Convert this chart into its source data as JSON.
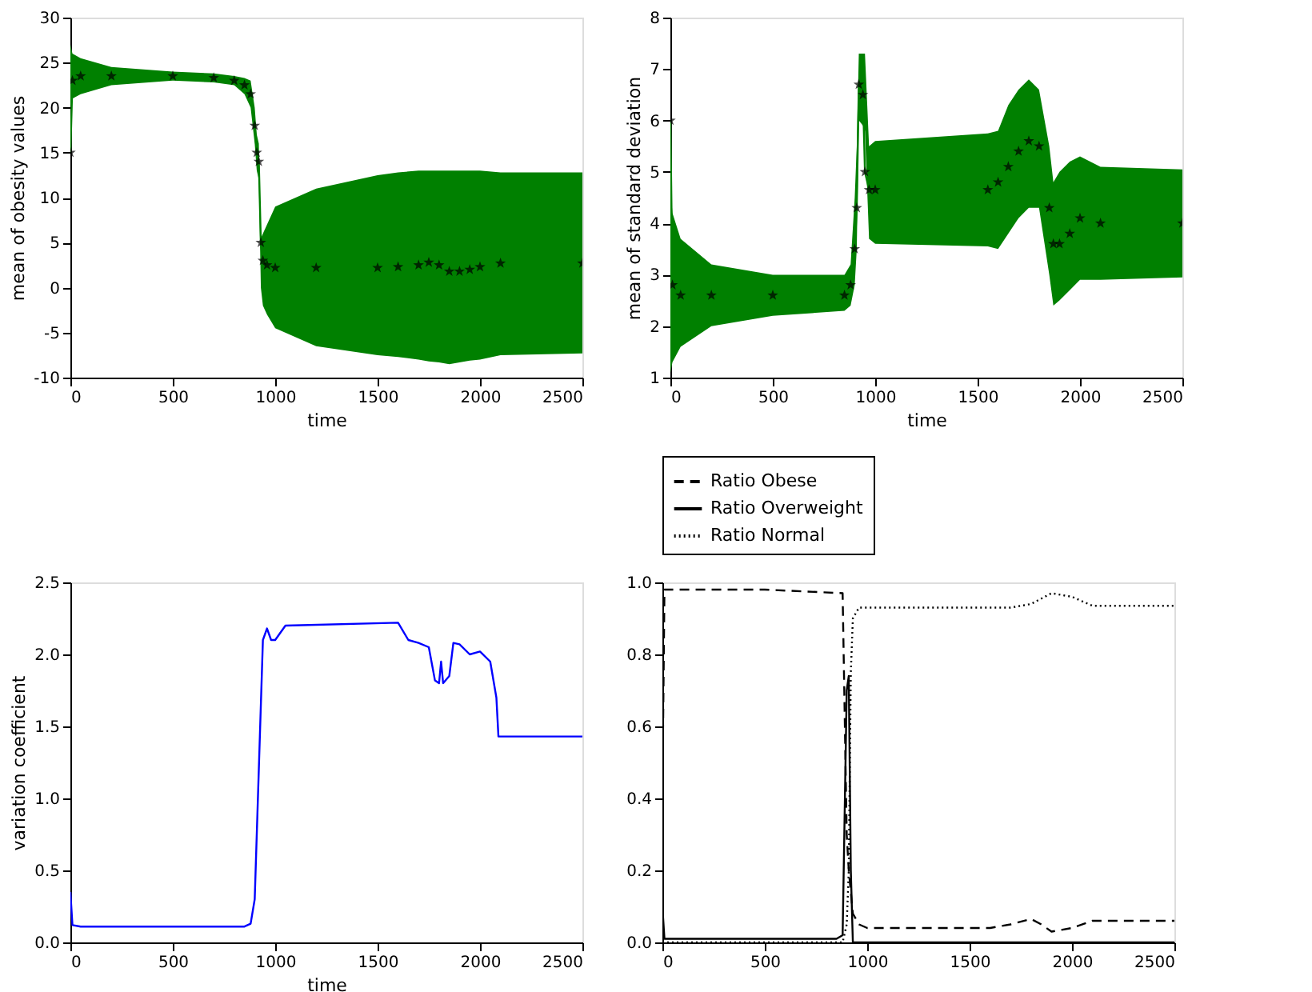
{
  "chart_data": [
    {
      "type": "line",
      "xlabel": "time",
      "ylabel": "mean of obesity values",
      "xlim": [
        0,
        2500
      ],
      "ylim": [
        -10,
        30
      ],
      "xticks": [
        0,
        500,
        1000,
        1500,
        2000,
        2500
      ],
      "yticks": [
        -10,
        -5,
        0,
        5,
        10,
        15,
        20,
        25,
        30
      ],
      "series": [
        {
          "type": "line",
          "color": "#008000",
          "x": [
            0,
            10,
            50,
            200,
            500,
            700,
            800,
            850,
            880,
            900,
            910,
            920,
            930,
            940,
            960,
            1000,
            1200,
            1500,
            1600,
            1700,
            1750,
            1800,
            1850,
            1900,
            1950,
            2000,
            2100,
            2500
          ],
          "values": [
            15,
            23,
            23.5,
            23.5,
            23.5,
            23.3,
            23,
            22.5,
            21.5,
            18,
            15,
            14,
            5,
            3,
            2.5,
            2.2,
            2.2,
            2.2,
            2.3,
            2.5,
            2.8,
            2.5,
            1.8,
            1.8,
            2,
            2.3,
            2.7,
            2.7
          ],
          "lower": [
            20,
            21,
            21.5,
            22.5,
            23,
            22.8,
            22.5,
            21.5,
            20,
            16,
            13,
            12,
            0,
            -2,
            -3,
            -4.5,
            -6.5,
            -7.5,
            -7.7,
            -8,
            -8.2,
            -8.3,
            -8.5,
            -8.3,
            -8.1,
            -8,
            -7.5,
            -7.3
          ],
          "upper": [
            27,
            26,
            25.5,
            24.5,
            24,
            23.8,
            23.5,
            23.3,
            23,
            20,
            17,
            16,
            5.5,
            6,
            7,
            9,
            11,
            12.5,
            12.8,
            13,
            13,
            13,
            13,
            13,
            13,
            13,
            12.8,
            12.8
          ]
        },
        {
          "type": "scatter",
          "color": "#000000",
          "marker": "star",
          "x": [
            0,
            10,
            50,
            200,
            500,
            700,
            800,
            850,
            880,
            900,
            910,
            920,
            930,
            940,
            960,
            1000,
            1200,
            1500,
            1600,
            1700,
            1750,
            1800,
            1850,
            1900,
            1950,
            2000,
            2100,
            2500
          ],
          "values": [
            15,
            23,
            23.5,
            23.5,
            23.5,
            23.3,
            23,
            22.5,
            21.5,
            18,
            15,
            14,
            5,
            3,
            2.5,
            2.2,
            2.2,
            2.2,
            2.3,
            2.5,
            2.8,
            2.5,
            1.8,
            1.8,
            2,
            2.3,
            2.7,
            2.7
          ]
        }
      ]
    },
    {
      "type": "line",
      "xlabel": "time",
      "ylabel": "mean of standard deviation",
      "xlim": [
        0,
        2500
      ],
      "ylim": [
        1,
        8
      ],
      "xticks": [
        0,
        500,
        1000,
        1500,
        2000,
        2500
      ],
      "yticks": [
        1,
        2,
        3,
        4,
        5,
        6,
        7,
        8
      ],
      "series": [
        {
          "type": "line",
          "color": "#008000",
          "x": [
            0,
            10,
            50,
            200,
            500,
            850,
            880,
            900,
            910,
            920,
            940,
            950,
            970,
            1000,
            1550,
            1600,
            1650,
            1700,
            1750,
            1800,
            1850,
            1870,
            1900,
            1950,
            2000,
            2100,
            2500
          ],
          "values": [
            6,
            2.8,
            2.6,
            2.6,
            2.6,
            2.6,
            2.8,
            3.5,
            4.3,
            6.7,
            6.5,
            5,
            4.65,
            4.65,
            4.65,
            4.8,
            5.1,
            5.4,
            5.6,
            5.5,
            4.3,
            3.6,
            3.6,
            3.8,
            4.1,
            4,
            4
          ],
          "lower": [
            1.1,
            1.3,
            1.6,
            2,
            2.2,
            2.3,
            2.4,
            2.8,
            3.5,
            6,
            5.9,
            5.8,
            3.7,
            3.6,
            3.55,
            3.5,
            3.8,
            4.1,
            4.3,
            4.3,
            3,
            2.4,
            2.5,
            2.7,
            2.9,
            2.9,
            2.95
          ],
          "upper": [
            4.7,
            4.2,
            3.7,
            3.2,
            3,
            3,
            3.2,
            4.5,
            5.5,
            7.3,
            7.3,
            7.3,
            5.5,
            5.6,
            5.75,
            5.8,
            6.3,
            6.6,
            6.8,
            6.6,
            5.5,
            4.8,
            5,
            5.2,
            5.3,
            5.1,
            5.05
          ]
        },
        {
          "type": "scatter",
          "color": "#000000",
          "marker": "star",
          "x": [
            0,
            10,
            50,
            200,
            500,
            850,
            880,
            900,
            910,
            920,
            940,
            950,
            970,
            1000,
            1550,
            1600,
            1650,
            1700,
            1750,
            1800,
            1850,
            1870,
            1900,
            1950,
            2000,
            2100,
            2500
          ],
          "values": [
            6,
            2.8,
            2.6,
            2.6,
            2.6,
            2.6,
            2.8,
            3.5,
            4.3,
            6.7,
            6.5,
            5,
            4.65,
            4.65,
            4.65,
            4.8,
            5.1,
            5.4,
            5.6,
            5.5,
            4.3,
            3.6,
            3.6,
            3.8,
            4.1,
            4,
            4
          ]
        }
      ]
    },
    {
      "type": "line",
      "xlabel": "time",
      "ylabel": "variation coefficient",
      "xlim": [
        0,
        2500
      ],
      "ylim": [
        0,
        2.5
      ],
      "xticks": [
        0,
        500,
        1000,
        1500,
        2000,
        2500
      ],
      "yticks": [
        {
          "value": 0,
          "label": "0.0"
        },
        {
          "value": 0.5,
          "label": "0.5"
        },
        {
          "value": 1,
          "label": "1.0"
        },
        {
          "value": 1.5,
          "label": "1.5"
        },
        {
          "value": 2,
          "label": "2.0"
        },
        {
          "value": 2.5,
          "label": "2.5"
        }
      ],
      "series": [
        {
          "type": "line",
          "color": "#0000ff",
          "x": [
            0,
            10,
            50,
            850,
            880,
            900,
            920,
            940,
            960,
            980,
            1000,
            1050,
            1600,
            1650,
            1700,
            1750,
            1780,
            1800,
            1810,
            1820,
            1850,
            1870,
            1900,
            1950,
            2000,
            2050,
            2080,
            2090,
            2500
          ],
          "values": [
            0.35,
            0.12,
            0.11,
            0.11,
            0.13,
            0.3,
            1.2,
            2.1,
            2.18,
            2.1,
            2.1,
            2.2,
            2.22,
            2.1,
            2.08,
            2.05,
            1.82,
            1.8,
            1.95,
            1.8,
            1.85,
            2.08,
            2.07,
            2,
            2.02,
            1.95,
            1.7,
            1.43,
            1.43
          ]
        }
      ]
    },
    {
      "type": "line",
      "xlim": [
        0,
        2500
      ],
      "ylim": [
        0,
        1
      ],
      "xticks": [
        0,
        500,
        1000,
        1500,
        2000,
        2500
      ],
      "yticks": [
        {
          "value": 0,
          "label": "0.0"
        },
        {
          "value": 0.2,
          "label": "0.2"
        },
        {
          "value": 0.4,
          "label": "0.4"
        },
        {
          "value": 0.6,
          "label": "0.6"
        },
        {
          "value": 0.8,
          "label": "0.8"
        },
        {
          "value": 1,
          "label": "1.0"
        }
      ],
      "legend": "top",
      "series": [
        {
          "name": "Ratio Obese",
          "color": "#000000",
          "line_style": "dashed",
          "x": [
            0,
            10,
            500,
            880,
            900,
            910,
            930,
            960,
            1000,
            1600,
            1700,
            1800,
            1850,
            1900,
            2000,
            2100,
            2500
          ],
          "values": [
            0.4,
            0.98,
            0.98,
            0.97,
            0.3,
            0.2,
            0.08,
            0.05,
            0.04,
            0.04,
            0.05,
            0.065,
            0.05,
            0.03,
            0.04,
            0.06,
            0.06
          ]
        },
        {
          "name": "Ratio Overweight",
          "color": "#000000",
          "line_style": "solid",
          "x": [
            0,
            10,
            850,
            880,
            900,
            910,
            920,
            930,
            2500
          ],
          "values": [
            0.1,
            0.01,
            0.01,
            0.02,
            0.7,
            0.74,
            0.2,
            0,
            0
          ]
        },
        {
          "name": "Ratio Normal",
          "color": "#000000",
          "line_style": "dotted",
          "x": [
            0,
            880,
            900,
            910,
            920,
            930,
            960,
            1650,
            1700,
            1800,
            1900,
            2000,
            2100,
            2500
          ],
          "values": [
            0,
            0,
            0.05,
            0.2,
            0.75,
            0.9,
            0.93,
            0.93,
            0.93,
            0.94,
            0.97,
            0.96,
            0.935,
            0.935
          ]
        }
      ]
    }
  ]
}
